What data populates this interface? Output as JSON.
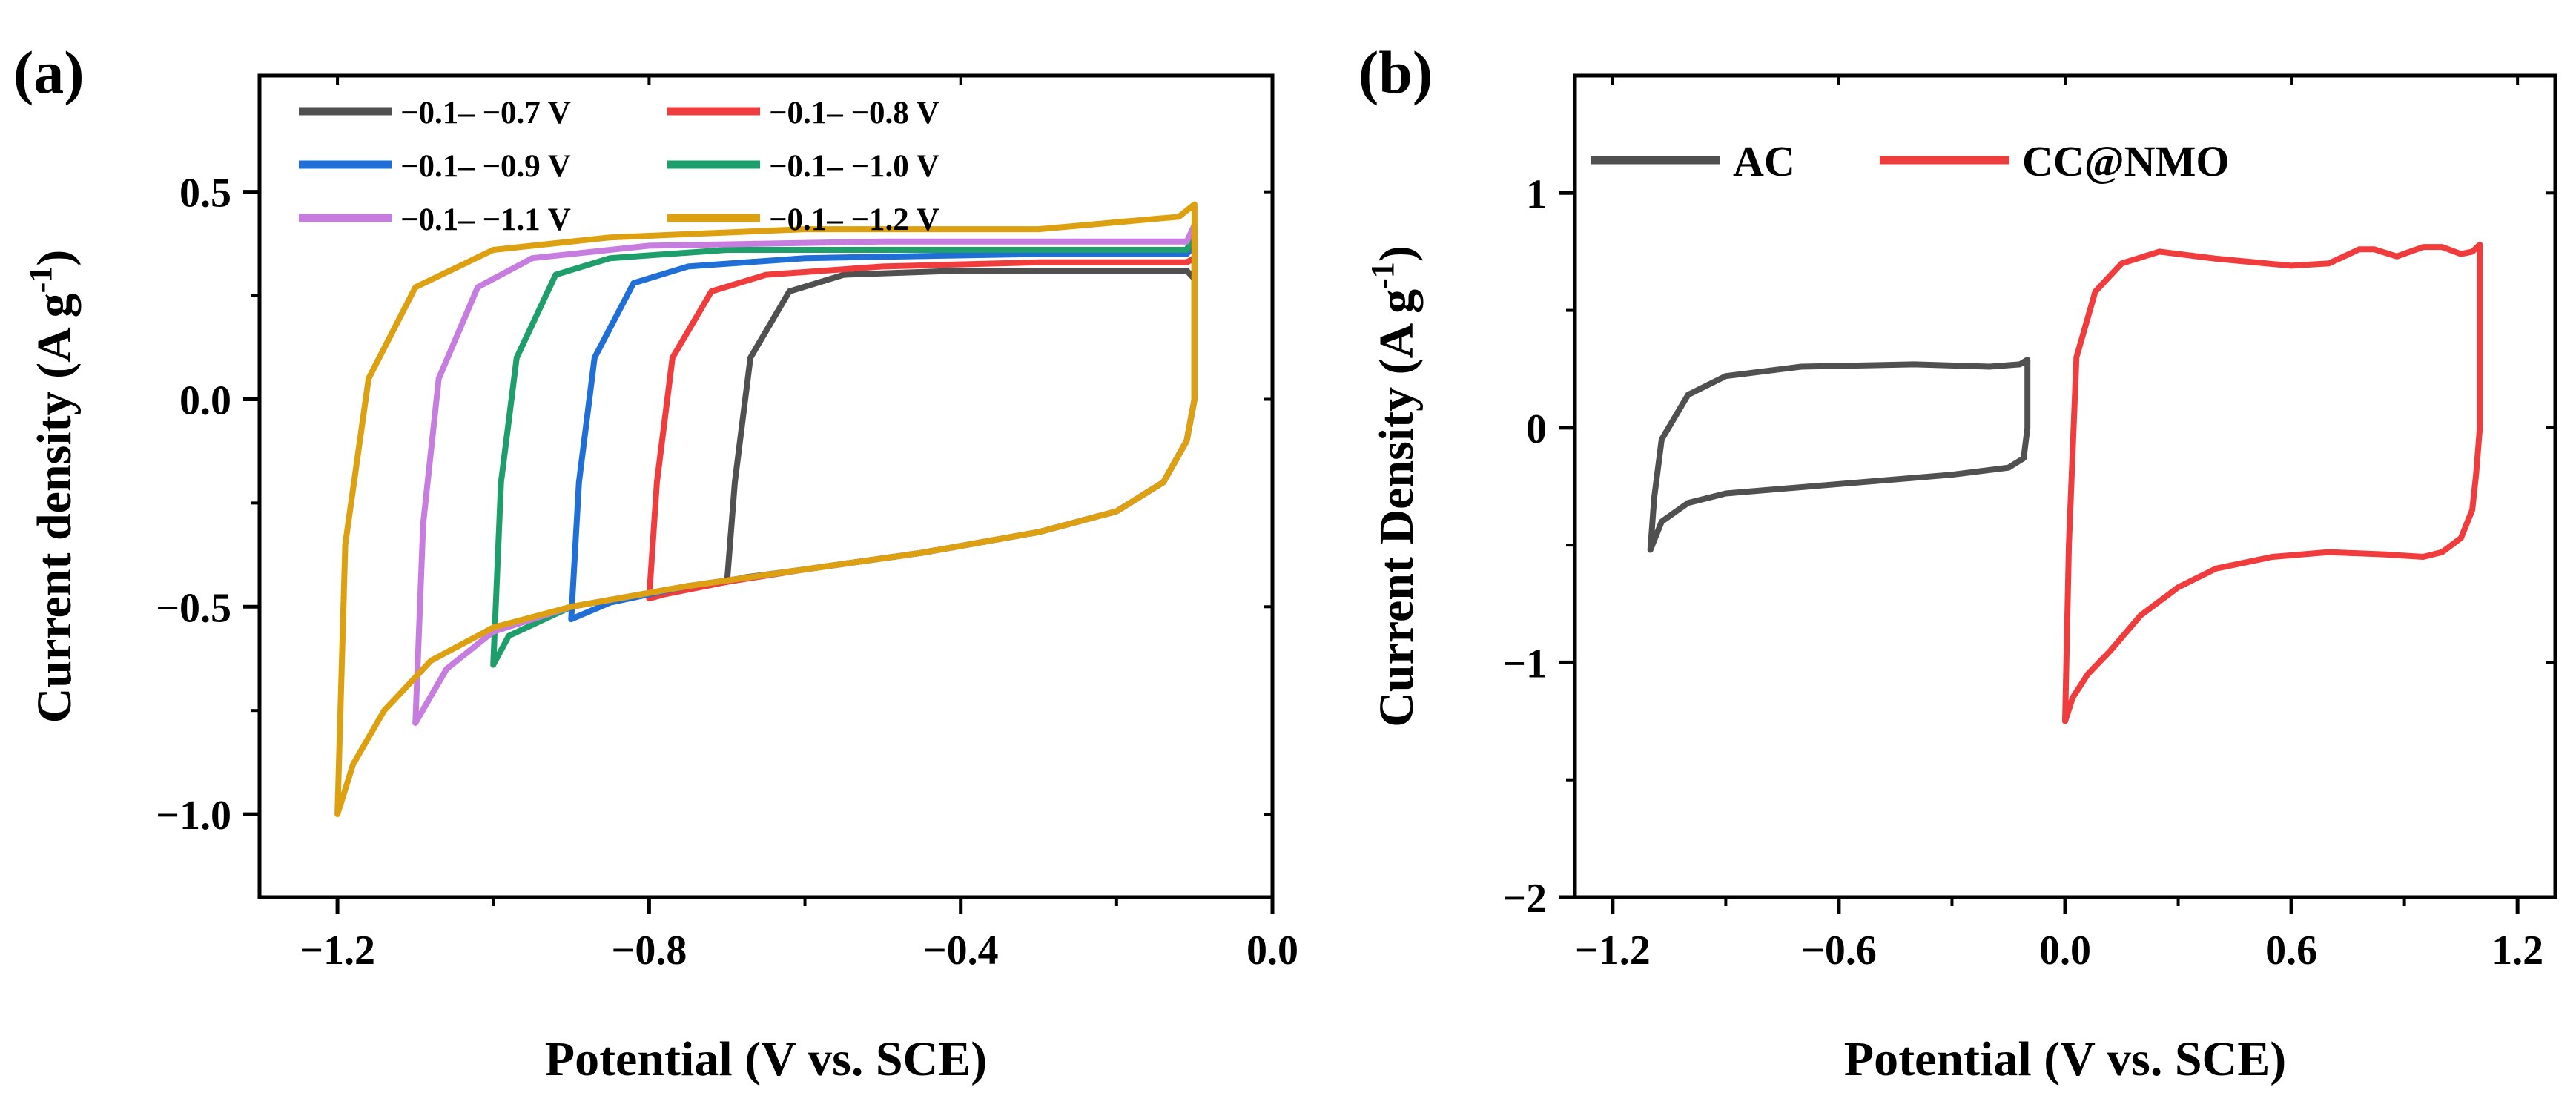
{
  "chart_data": [
    {
      "type": "line",
      "panel_label": "(a)",
      "xlabel": "Potential (V vs. SCE)",
      "ylabel": "Current density (A g",
      "ylabel_sup": "-1",
      "ylabel_close": ")",
      "xlim": [
        -1.3,
        0.0
      ],
      "ylim": [
        -1.2,
        0.78
      ],
      "xticks": [
        -1.2,
        -0.8,
        -0.4,
        0.0
      ],
      "xtick_labels": [
        "−1.2",
        "−0.8",
        "−0.4",
        "0.0"
      ],
      "yticks": [
        -1.0,
        -0.5,
        0.0,
        0.5
      ],
      "ytick_labels": [
        "−1.0",
        "−0.5",
        "0.0",
        "0.5"
      ],
      "legend_placement": "top-left",
      "series": [
        {
          "name": "−0.1– −0.7 V",
          "color": "#505050",
          "x": [
            -0.7,
            -0.69,
            -0.67,
            -0.62,
            -0.55,
            -0.4,
            -0.2,
            -0.11,
            -0.1,
            -0.1,
            -0.1,
            -0.11,
            -0.14,
            -0.2,
            -0.3,
            -0.45,
            -0.6,
            -0.68,
            -0.7,
            -0.7
          ],
          "y": [
            -0.44,
            -0.2,
            0.1,
            0.26,
            0.3,
            0.31,
            0.31,
            0.31,
            0.29,
            0.2,
            0.0,
            -0.1,
            -0.2,
            -0.27,
            -0.32,
            -0.37,
            -0.41,
            -0.43,
            -0.44,
            -0.44
          ]
        },
        {
          "name": "−0.1– −0.8 V",
          "color": "#F03C3C",
          "x": [
            -0.8,
            -0.79,
            -0.77,
            -0.72,
            -0.65,
            -0.5,
            -0.3,
            -0.11,
            -0.1,
            -0.1,
            -0.1,
            -0.11,
            -0.14,
            -0.2,
            -0.3,
            -0.45,
            -0.6,
            -0.7,
            -0.78,
            -0.8
          ],
          "y": [
            -0.48,
            -0.2,
            0.1,
            0.26,
            0.3,
            0.32,
            0.33,
            0.33,
            0.34,
            0.2,
            0.0,
            -0.1,
            -0.2,
            -0.27,
            -0.32,
            -0.37,
            -0.41,
            -0.44,
            -0.47,
            -0.48
          ]
        },
        {
          "name": "−0.1– −0.9 V",
          "color": "#1F6FD6",
          "x": [
            -0.9,
            -0.89,
            -0.87,
            -0.82,
            -0.75,
            -0.6,
            -0.3,
            -0.11,
            -0.1,
            -0.1,
            -0.1,
            -0.11,
            -0.14,
            -0.2,
            -0.3,
            -0.45,
            -0.6,
            -0.75,
            -0.85,
            -0.9
          ],
          "y": [
            -0.53,
            -0.2,
            0.1,
            0.28,
            0.32,
            0.34,
            0.35,
            0.35,
            0.37,
            0.2,
            0.0,
            -0.1,
            -0.2,
            -0.27,
            -0.32,
            -0.37,
            -0.41,
            -0.45,
            -0.49,
            -0.53
          ]
        },
        {
          "name": "−0.1– −1.0 V",
          "color": "#1E9E6A",
          "x": [
            -1.0,
            -0.99,
            -0.97,
            -0.92,
            -0.85,
            -0.7,
            -0.4,
            -0.11,
            -0.1,
            -0.1,
            -0.1,
            -0.11,
            -0.14,
            -0.2,
            -0.3,
            -0.45,
            -0.6,
            -0.75,
            -0.9,
            -0.98,
            -1.0
          ],
          "y": [
            -0.64,
            -0.2,
            0.1,
            0.3,
            0.34,
            0.36,
            0.36,
            0.36,
            0.4,
            0.2,
            0.0,
            -0.1,
            -0.2,
            -0.27,
            -0.32,
            -0.37,
            -0.41,
            -0.45,
            -0.5,
            -0.57,
            -0.64
          ]
        },
        {
          "name": "−0.1– −1.1 V",
          "color": "#C77DE0",
          "x": [
            -1.1,
            -1.09,
            -1.07,
            -1.02,
            -0.95,
            -0.8,
            -0.5,
            -0.11,
            -0.1,
            -0.1,
            -0.1,
            -0.11,
            -0.14,
            -0.2,
            -0.3,
            -0.45,
            -0.6,
            -0.75,
            -0.9,
            -1.0,
            -1.06,
            -1.1
          ],
          "y": [
            -0.78,
            -0.3,
            0.05,
            0.27,
            0.34,
            0.37,
            0.38,
            0.38,
            0.42,
            0.2,
            0.0,
            -0.1,
            -0.2,
            -0.27,
            -0.32,
            -0.37,
            -0.41,
            -0.45,
            -0.5,
            -0.56,
            -0.65,
            -0.78
          ]
        },
        {
          "name": "−0.1– −1.2 V",
          "color": "#DDA010",
          "x": [
            -1.2,
            -1.19,
            -1.16,
            -1.1,
            -1.0,
            -0.85,
            -0.6,
            -0.3,
            -0.12,
            -0.1,
            -0.1,
            -0.1,
            -0.11,
            -0.14,
            -0.2,
            -0.3,
            -0.45,
            -0.6,
            -0.75,
            -0.9,
            -1.0,
            -1.08,
            -1.14,
            -1.18,
            -1.2
          ],
          "y": [
            -1.0,
            -0.35,
            0.05,
            0.27,
            0.36,
            0.39,
            0.41,
            0.41,
            0.44,
            0.47,
            0.2,
            0.0,
            -0.1,
            -0.2,
            -0.27,
            -0.32,
            -0.37,
            -0.41,
            -0.45,
            -0.5,
            -0.55,
            -0.63,
            -0.75,
            -0.88,
            -1.0
          ]
        }
      ]
    },
    {
      "type": "line",
      "panel_label": "(b)",
      "xlabel": "Potential (V vs. SCE)",
      "ylabel": "Current Density (A g",
      "ylabel_sup": "-1",
      "ylabel_close": ")",
      "xlim": [
        -1.3,
        1.3
      ],
      "ylim": [
        -2.0,
        1.5
      ],
      "xticks": [
        -1.2,
        -0.6,
        0.0,
        0.6,
        1.2
      ],
      "xtick_labels": [
        "−1.2",
        "−0.6",
        "0.0",
        "0.6",
        "1.2"
      ],
      "yticks": [
        -2,
        -1,
        0,
        1
      ],
      "ytick_labels": [
        "−2",
        "−1",
        "0",
        "1"
      ],
      "legend_placement": "top-left",
      "series": [
        {
          "name": "AC",
          "color": "#505050",
          "x": [
            -1.1,
            -1.09,
            -1.07,
            -1.0,
            -0.9,
            -0.7,
            -0.4,
            -0.2,
            -0.12,
            -0.1,
            -0.1,
            -0.11,
            -0.15,
            -0.3,
            -0.6,
            -0.9,
            -1.0,
            -1.07,
            -1.1
          ],
          "y": [
            -0.52,
            -0.3,
            -0.05,
            0.14,
            0.22,
            0.26,
            0.27,
            0.26,
            0.27,
            0.29,
            0.0,
            -0.13,
            -0.17,
            -0.2,
            -0.24,
            -0.28,
            -0.32,
            -0.4,
            -0.52
          ]
        },
        {
          "name": "CC@NMO",
          "color": "#F03C3C",
          "x": [
            0.0,
            0.01,
            0.03,
            0.08,
            0.15,
            0.25,
            0.4,
            0.6,
            0.7,
            0.78,
            0.82,
            0.88,
            0.95,
            1.0,
            1.05,
            1.08,
            1.1,
            1.1,
            1.09,
            1.08,
            1.05,
            1.0,
            0.95,
            0.85,
            0.7,
            0.55,
            0.4,
            0.3,
            0.2,
            0.12,
            0.06,
            0.02,
            0.0
          ],
          "y": [
            -1.25,
            -0.5,
            0.3,
            0.58,
            0.7,
            0.75,
            0.72,
            0.69,
            0.7,
            0.76,
            0.76,
            0.73,
            0.77,
            0.77,
            0.74,
            0.75,
            0.78,
            0.0,
            -0.2,
            -0.35,
            -0.47,
            -0.53,
            -0.55,
            -0.54,
            -0.53,
            -0.55,
            -0.6,
            -0.68,
            -0.8,
            -0.95,
            -1.05,
            -1.15,
            -1.25
          ]
        }
      ]
    }
  ]
}
